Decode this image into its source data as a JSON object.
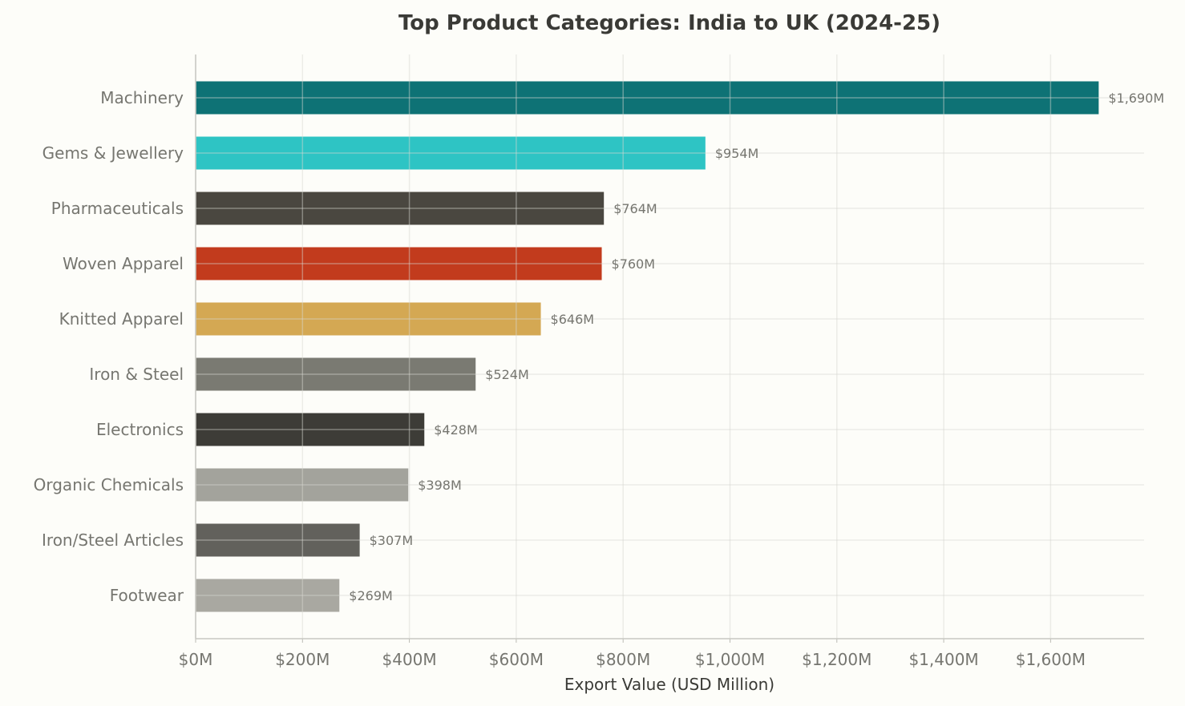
{
  "chart_data": {
    "type": "bar",
    "orientation": "horizontal",
    "title": "Top Product Categories: India to UK (2024-25)",
    "xlabel": "Export Value (USD Million)",
    "ylabel": "",
    "categories": [
      "Machinery",
      "Gems & Jewellery",
      "Pharmaceuticals",
      "Woven Apparel",
      "Knitted Apparel",
      "Iron & Steel",
      "Electronics",
      "Organic Chemicals",
      "Iron/Steel Articles",
      "Footwear"
    ],
    "values": [
      1690,
      954,
      764,
      760,
      646,
      524,
      428,
      398,
      307,
      269
    ],
    "data_labels": [
      "$1,690M",
      "$954M",
      "$764M",
      "$760M",
      "$646M",
      "$524M",
      "$428M",
      "$398M",
      "$307M",
      "$269M"
    ],
    "colors": [
      "#0e7275",
      "#2ec4c4",
      "#4a4740",
      "#c23b1d",
      "#d4a853",
      "#7a7a72",
      "#3d3c37",
      "#a3a39c",
      "#62615c",
      "#a9a8a1"
    ],
    "xticks": [
      0,
      200,
      400,
      600,
      800,
      1000,
      1200,
      1400,
      1600
    ],
    "xtick_labels": [
      "$0M",
      "$200M",
      "$400M",
      "$600M",
      "$800M",
      "$1,000M",
      "$1,200M",
      "$1,400M",
      "$1,600M"
    ],
    "xlim": [
      0,
      1775
    ],
    "grid": true,
    "legend": "none"
  }
}
